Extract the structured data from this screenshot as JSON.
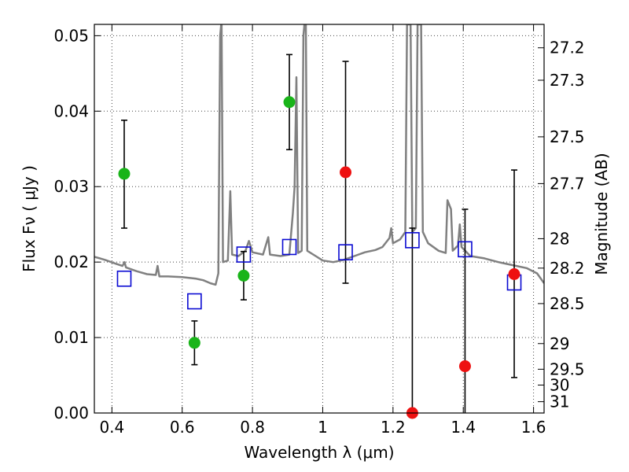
{
  "chart_data": {
    "type": "scatter",
    "xlabel": "Wavelength  λ (μm)",
    "ylabel": "Flux  Fν ( μJy )",
    "ylabel_right": "Magnitude (AB)",
    "xlim": [
      0.35,
      1.63
    ],
    "ylim": [
      0.0,
      0.0515
    ],
    "grid": true,
    "x_ticks": [
      0.4,
      0.6,
      0.8,
      1.0,
      1.2,
      1.4,
      1.6
    ],
    "x_tick_labels": [
      "0.4",
      "0.6",
      "0.8",
      "1",
      "1.2",
      "1.4",
      "1.6"
    ],
    "y_ticks": [
      0.0,
      0.01,
      0.02,
      0.03,
      0.04,
      0.05
    ],
    "y_tick_labels": [
      "0.00",
      "0.01",
      "0.02",
      "0.03",
      "0.04",
      "0.05"
    ],
    "right_ticks": [
      {
        "label": "27.2",
        "flux": 0.0484
      },
      {
        "label": "27.3",
        "flux": 0.0441
      },
      {
        "label": "27.5",
        "flux": 0.0366
      },
      {
        "label": "27.7",
        "flux": 0.0304
      },
      {
        "label": "28",
        "flux": 0.0231
      },
      {
        "label": "28.2",
        "flux": 0.0192
      },
      {
        "label": "28.5",
        "flux": 0.0145
      },
      {
        "label": "29",
        "flux": 0.0092
      },
      {
        "label": "29.5",
        "flux": 0.0058
      },
      {
        "label": "30",
        "flux": 0.0037
      },
      {
        "label": "31",
        "flux": 0.0015
      }
    ],
    "colors": {
      "detection": "#19b419",
      "upper_limit": "#ee1111",
      "model": "#0a0ad2",
      "sed": "#808080",
      "error_bar": "#000000",
      "grid": "#444444"
    },
    "series": [
      {
        "kind": "detection",
        "points": [
          {
            "x": 0.435,
            "y": 0.0317,
            "err_low": 0.0245,
            "err_high": 0.0388
          },
          {
            "x": 0.635,
            "y": 0.0093,
            "err_low": 0.0064,
            "err_high": 0.0122
          },
          {
            "x": 0.775,
            "y": 0.0182,
            "err_low": 0.015,
            "err_high": 0.0214
          },
          {
            "x": 0.905,
            "y": 0.0412,
            "err_low": 0.0349,
            "err_high": 0.0475
          }
        ]
      },
      {
        "kind": "upper_limit",
        "points": [
          {
            "x": 1.065,
            "y": 0.0319,
            "err_low": 0.0172,
            "err_high": 0.0466
          },
          {
            "x": 1.255,
            "y": 0.0,
            "err_low": 0.0,
            "err_high": 0.0245
          },
          {
            "x": 1.405,
            "y": 0.0062,
            "err_low": 0.0,
            "err_high": 0.027
          },
          {
            "x": 1.545,
            "y": 0.0184,
            "err_low": 0.0047,
            "err_high": 0.0322
          }
        ]
      },
      {
        "kind": "model",
        "points": [
          {
            "x": 0.435,
            "y": 0.0178
          },
          {
            "x": 0.635,
            "y": 0.0148
          },
          {
            "x": 0.775,
            "y": 0.021
          },
          {
            "x": 0.905,
            "y": 0.022
          },
          {
            "x": 1.065,
            "y": 0.0213
          },
          {
            "x": 1.255,
            "y": 0.0229
          },
          {
            "x": 1.405,
            "y": 0.0217
          },
          {
            "x": 1.545,
            "y": 0.0173
          }
        ]
      },
      {
        "kind": "sed",
        "points": [
          [
            0.35,
            0.0207
          ],
          [
            0.38,
            0.0203
          ],
          [
            0.41,
            0.0198
          ],
          [
            0.43,
            0.0195
          ],
          [
            0.436,
            0.02
          ],
          [
            0.44,
            0.0193
          ],
          [
            0.47,
            0.0188
          ],
          [
            0.5,
            0.0184
          ],
          [
            0.525,
            0.0183
          ],
          [
            0.53,
            0.0195
          ],
          [
            0.535,
            0.0181
          ],
          [
            0.56,
            0.0181
          ],
          [
            0.6,
            0.018
          ],
          [
            0.64,
            0.0178
          ],
          [
            0.66,
            0.0176
          ],
          [
            0.68,
            0.0172
          ],
          [
            0.695,
            0.017
          ],
          [
            0.703,
            0.0185
          ],
          [
            0.708,
            0.05
          ],
          [
            0.712,
            0.052
          ],
          [
            0.716,
            0.02
          ],
          [
            0.73,
            0.0202
          ],
          [
            0.737,
            0.0294
          ],
          [
            0.742,
            0.021
          ],
          [
            0.76,
            0.0208
          ],
          [
            0.78,
            0.0215
          ],
          [
            0.79,
            0.0228
          ],
          [
            0.8,
            0.0213
          ],
          [
            0.83,
            0.021
          ],
          [
            0.845,
            0.0233
          ],
          [
            0.85,
            0.021
          ],
          [
            0.88,
            0.0208
          ],
          [
            0.905,
            0.021
          ],
          [
            0.915,
            0.0265
          ],
          [
            0.92,
            0.03
          ],
          [
            0.925,
            0.0445
          ],
          [
            0.93,
            0.0212
          ],
          [
            0.94,
            0.0215
          ],
          [
            0.945,
            0.05
          ],
          [
            0.948,
            0.0515
          ],
          [
            0.952,
            0.0515
          ],
          [
            0.956,
            0.0215
          ],
          [
            0.98,
            0.0208
          ],
          [
            1.0,
            0.0202
          ],
          [
            1.03,
            0.02
          ],
          [
            1.06,
            0.0203
          ],
          [
            1.09,
            0.0208
          ],
          [
            1.12,
            0.0213
          ],
          [
            1.15,
            0.0216
          ],
          [
            1.17,
            0.022
          ],
          [
            1.19,
            0.0232
          ],
          [
            1.195,
            0.0245
          ],
          [
            1.2,
            0.0225
          ],
          [
            1.22,
            0.023
          ],
          [
            1.235,
            0.024
          ],
          [
            1.24,
            0.0515
          ],
          [
            1.25,
            0.0515
          ],
          [
            1.255,
            0.024
          ],
          [
            1.265,
            0.0245
          ],
          [
            1.27,
            0.0515
          ],
          [
            1.28,
            0.0515
          ],
          [
            1.285,
            0.024
          ],
          [
            1.3,
            0.0225
          ],
          [
            1.33,
            0.0215
          ],
          [
            1.35,
            0.0212
          ],
          [
            1.355,
            0.0282
          ],
          [
            1.365,
            0.027
          ],
          [
            1.37,
            0.0215
          ],
          [
            1.385,
            0.0222
          ],
          [
            1.39,
            0.025
          ],
          [
            1.395,
            0.022
          ],
          [
            1.42,
            0.0208
          ],
          [
            1.46,
            0.0205
          ],
          [
            1.5,
            0.02
          ],
          [
            1.54,
            0.0196
          ],
          [
            1.58,
            0.0192
          ],
          [
            1.61,
            0.0185
          ],
          [
            1.63,
            0.0172
          ]
        ]
      }
    ]
  }
}
